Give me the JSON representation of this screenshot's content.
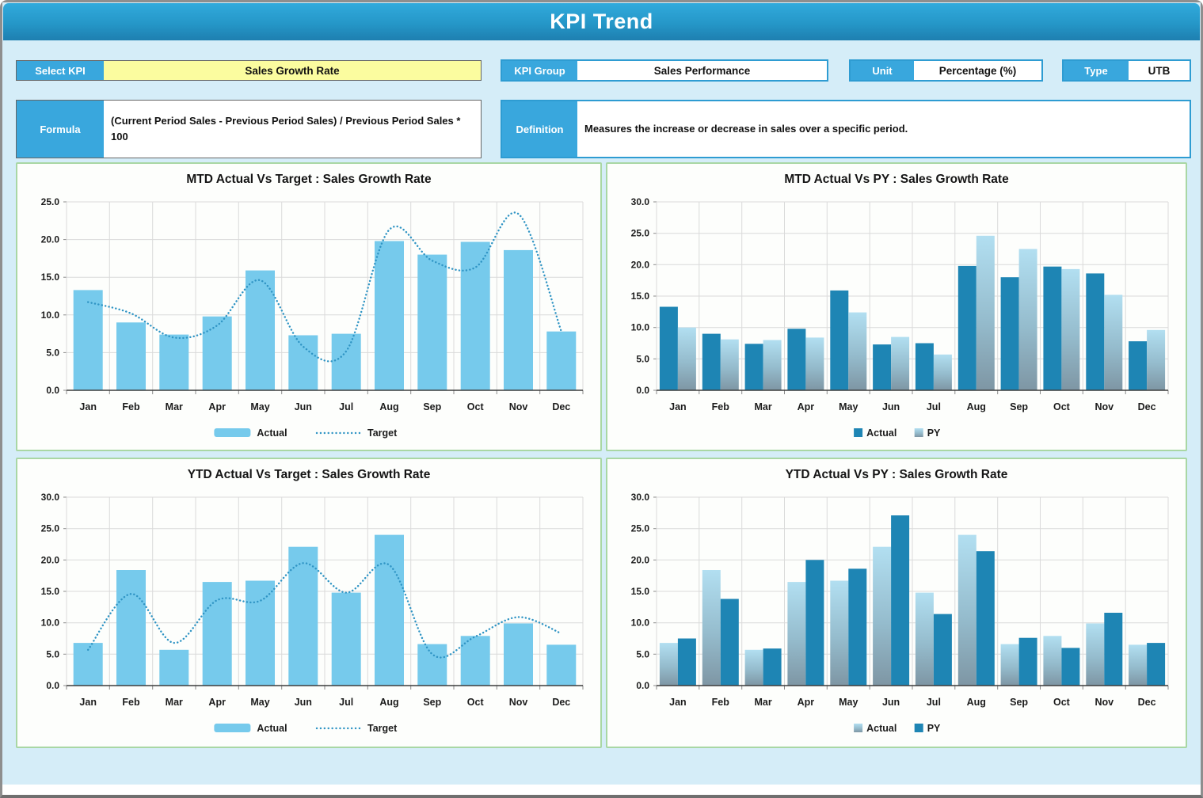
{
  "header": {
    "title": "KPI Trend"
  },
  "controls": {
    "select_kpi": {
      "label": "Select KPI",
      "value": "Sales Growth Rate"
    },
    "kpi_group": {
      "label": "KPI Group",
      "value": "Sales Performance"
    },
    "unit": {
      "label": "Unit",
      "value": "Percentage (%)"
    },
    "type": {
      "label": "Type",
      "value": "UTB"
    },
    "formula": {
      "label": "Formula",
      "value": "(Current Period Sales - Previous Period Sales) / Previous Period Sales * 100"
    },
    "definition": {
      "label": "Definition",
      "value": "Measures the increase or decrease in sales over a specific period."
    }
  },
  "colors": {
    "header_gradient_top": "#31AADC",
    "header_gradient_bottom": "#1E7FB0",
    "page_bg": "#D5EDF8",
    "label_cell_bg": "#39A7DD",
    "select_value_bg": "#FBFC9F",
    "panel_border": "#A9D7A4",
    "bar_light": "#76CAEC",
    "bar_dark": "#1E85B4",
    "bar_gradient_top": "#B2DFF1",
    "bar_gradient_mid": "#95BCCD",
    "bar_gradient_bottom": "#7E96A4",
    "target_line": "#2F94C4",
    "grid_line": "#DADADA",
    "axis_line": "#3D3D3D",
    "text_dark": "#1C1C1C"
  },
  "chart_data": [
    {
      "type": "bar",
      "title": "MTD Actual Vs Target : Sales Growth Rate",
      "categories": [
        "Jan",
        "Feb",
        "Mar",
        "Apr",
        "May",
        "Jun",
        "Jul",
        "Aug",
        "Sep",
        "Oct",
        "Nov",
        "Dec"
      ],
      "series": [
        {
          "name": "Actual",
          "style": "light",
          "kind": "bar",
          "values": [
            13.3,
            9.0,
            7.4,
            9.8,
            15.9,
            7.3,
            7.5,
            19.8,
            18.0,
            19.7,
            18.6,
            7.8
          ]
        },
        {
          "name": "Target",
          "style": "dotted-line",
          "kind": "line",
          "values": [
            11.7,
            10.2,
            7.0,
            8.6,
            14.6,
            5.8,
            5.2,
            21.3,
            17.2,
            16.3,
            23.4,
            7.8
          ]
        }
      ],
      "ylim": [
        0,
        25
      ],
      "ytick_step": 5,
      "grid": true,
      "legend_position": "bottom"
    },
    {
      "type": "bar",
      "title": "MTD Actual Vs PY : Sales Growth Rate",
      "categories": [
        "Jan",
        "Feb",
        "Mar",
        "Apr",
        "May",
        "Jun",
        "Jul",
        "Aug",
        "Sep",
        "Oct",
        "Nov",
        "Dec"
      ],
      "series": [
        {
          "name": "Actual",
          "style": "dark",
          "kind": "bar",
          "values": [
            13.3,
            9.0,
            7.4,
            9.8,
            15.9,
            7.3,
            7.5,
            19.8,
            18.0,
            19.7,
            18.6,
            7.8
          ]
        },
        {
          "name": "PY",
          "style": "gradient",
          "kind": "bar",
          "values": [
            10.0,
            8.1,
            8.0,
            8.4,
            12.4,
            8.5,
            5.7,
            24.6,
            22.5,
            19.3,
            15.2,
            9.6
          ]
        }
      ],
      "ylim": [
        0,
        30
      ],
      "ytick_step": 5,
      "grid": true,
      "legend_position": "bottom"
    },
    {
      "type": "bar",
      "title": "YTD Actual Vs Target : Sales Growth Rate",
      "categories": [
        "Jan",
        "Feb",
        "Mar",
        "Apr",
        "May",
        "Jun",
        "Jul",
        "Aug",
        "Sep",
        "Oct",
        "Nov",
        "Dec"
      ],
      "series": [
        {
          "name": "Actual",
          "style": "light",
          "kind": "bar",
          "values": [
            6.8,
            18.4,
            5.7,
            16.5,
            16.7,
            22.1,
            14.8,
            24.0,
            6.6,
            7.9,
            9.9,
            6.5
          ]
        },
        {
          "name": "Target",
          "style": "dotted-line",
          "kind": "line",
          "values": [
            5.7,
            14.6,
            6.8,
            13.6,
            13.5,
            19.5,
            14.8,
            19.2,
            5.0,
            7.8,
            10.9,
            8.3
          ]
        }
      ],
      "ylim": [
        0,
        30
      ],
      "ytick_step": 5,
      "grid": true,
      "legend_position": "bottom"
    },
    {
      "type": "bar",
      "title": "YTD Actual Vs PY : Sales Growth Rate",
      "categories": [
        "Jan",
        "Feb",
        "Mar",
        "Apr",
        "May",
        "Jun",
        "Jul",
        "Aug",
        "Sep",
        "Oct",
        "Nov",
        "Dec"
      ],
      "series": [
        {
          "name": "Actual",
          "style": "gradient",
          "kind": "bar",
          "values": [
            6.8,
            18.4,
            5.7,
            16.5,
            16.7,
            22.1,
            14.8,
            24.0,
            6.6,
            7.9,
            9.9,
            6.5
          ]
        },
        {
          "name": "PY",
          "style": "dark",
          "kind": "bar",
          "values": [
            7.5,
            13.8,
            5.9,
            20.0,
            18.6,
            27.1,
            11.4,
            21.4,
            7.6,
            6.0,
            11.6,
            6.8
          ]
        }
      ],
      "ylim": [
        0,
        30
      ],
      "ytick_step": 5,
      "grid": true,
      "legend_position": "bottom"
    }
  ]
}
